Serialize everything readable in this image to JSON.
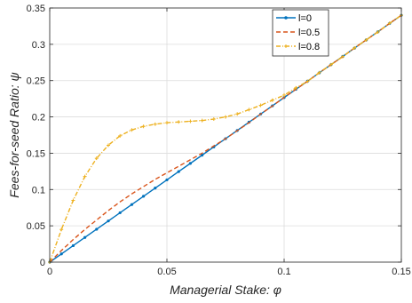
{
  "chart_data": {
    "type": "line",
    "title": "",
    "xlabel": "Managerial Stake: ",
    "xlabel_symbol": "φ",
    "ylabel": "Fees-for-seed Ratio: ",
    "ylabel_symbol": "ψ",
    "xlim": [
      0,
      0.15
    ],
    "ylim": [
      0,
      0.35
    ],
    "xticks": [
      0,
      0.05,
      0.1,
      0.15
    ],
    "xtick_labels": [
      "0",
      "0.05",
      "0.1",
      "0.15"
    ],
    "yticks": [
      0,
      0.05,
      0.1,
      0.15,
      0.2,
      0.25,
      0.3,
      0.35
    ],
    "ytick_labels": [
      "0",
      "0.05",
      "0.1",
      "0.15",
      "0.2",
      "0.25",
      "0.3",
      "0.35"
    ],
    "grid": true,
    "legend_position": "top-right",
    "series": [
      {
        "name": "l=0",
        "color": "#0072bd",
        "style": "solid-dot",
        "x": [
          0,
          0.005,
          0.01,
          0.015,
          0.02,
          0.025,
          0.03,
          0.035,
          0.04,
          0.045,
          0.05,
          0.055,
          0.06,
          0.065,
          0.07,
          0.075,
          0.08,
          0.085,
          0.09,
          0.095,
          0.1,
          0.105,
          0.11,
          0.115,
          0.12,
          0.125,
          0.13,
          0.135,
          0.14,
          0.145,
          0.15
        ],
        "y": [
          0,
          0.0113,
          0.0227,
          0.034,
          0.0453,
          0.0567,
          0.068,
          0.0793,
          0.0907,
          0.102,
          0.1133,
          0.1247,
          0.136,
          0.1473,
          0.1587,
          0.17,
          0.1813,
          0.1927,
          0.204,
          0.2153,
          0.2267,
          0.238,
          0.2493,
          0.2607,
          0.272,
          0.2833,
          0.2947,
          0.306,
          0.3173,
          0.3287,
          0.34
        ]
      },
      {
        "name": "l=0.5",
        "color": "#d95319",
        "style": "dashed",
        "x": [
          0,
          0.005,
          0.01,
          0.015,
          0.02,
          0.025,
          0.03,
          0.035,
          0.04,
          0.045,
          0.05,
          0.055,
          0.06,
          0.065,
          0.07,
          0.075,
          0.08,
          0.085,
          0.09,
          0.095,
          0.1,
          0.105,
          0.11,
          0.115,
          0.12,
          0.125,
          0.13,
          0.135,
          0.14,
          0.145,
          0.15
        ],
        "y": [
          0,
          0.016,
          0.031,
          0.045,
          0.058,
          0.071,
          0.083,
          0.094,
          0.104,
          0.114,
          0.123,
          0.132,
          0.141,
          0.15,
          0.16,
          0.17,
          0.181,
          0.192,
          0.204,
          0.215,
          0.227,
          0.238,
          0.249,
          0.261,
          0.272,
          0.283,
          0.295,
          0.306,
          0.317,
          0.329,
          0.34
        ]
      },
      {
        "name": "l=0.8",
        "color": "#edb120",
        "style": "dash-dot-marker",
        "x": [
          0,
          0.005,
          0.01,
          0.015,
          0.02,
          0.025,
          0.03,
          0.035,
          0.04,
          0.045,
          0.05,
          0.055,
          0.06,
          0.065,
          0.07,
          0.075,
          0.08,
          0.085,
          0.09,
          0.095,
          0.1,
          0.105,
          0.11,
          0.115,
          0.12,
          0.125,
          0.13,
          0.135,
          0.14,
          0.145,
          0.15
        ],
        "y": [
          0,
          0.045,
          0.085,
          0.118,
          0.143,
          0.161,
          0.174,
          0.182,
          0.187,
          0.19,
          0.192,
          0.193,
          0.194,
          0.195,
          0.197,
          0.2,
          0.204,
          0.21,
          0.216,
          0.223,
          0.23,
          0.24,
          0.249,
          0.261,
          0.272,
          0.283,
          0.295,
          0.306,
          0.317,
          0.329,
          0.34
        ]
      }
    ]
  }
}
